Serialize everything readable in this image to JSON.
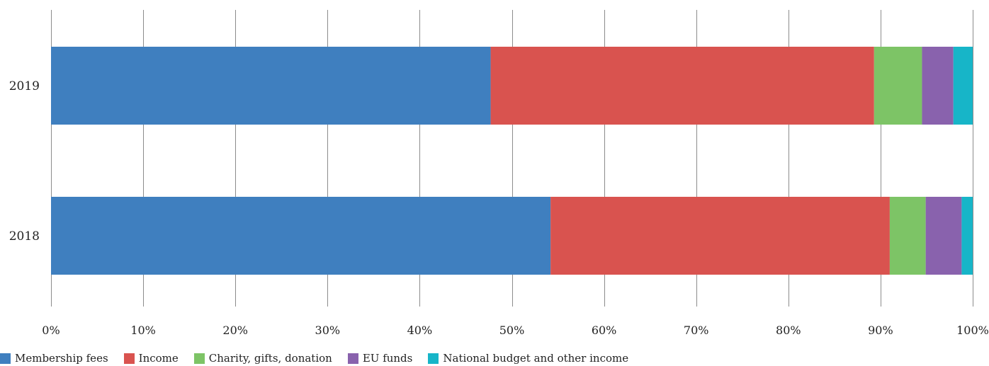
{
  "chart_data": {
    "type": "bar",
    "orientation": "horizontal",
    "stacked": "percent",
    "categories": [
      "2019",
      "2018"
    ],
    "series": [
      {
        "name": "Membership fees",
        "color": "#3f7fbf",
        "values": [
          47.7,
          54.2
        ]
      },
      {
        "name": "Income",
        "color": "#d9534f",
        "values": [
          41.6,
          36.8
        ]
      },
      {
        "name": "Charity, gifts, donation",
        "color": "#7dc466",
        "values": [
          5.2,
          3.9
        ]
      },
      {
        "name": "EU funds",
        "color": "#8962ad",
        "values": [
          3.4,
          3.9
        ]
      },
      {
        "name": "National budget and other income",
        "color": "#17b5c8",
        "values": [
          2.1,
          1.2
        ]
      }
    ],
    "xlim": [
      0,
      100
    ],
    "x_ticks": [
      "0%",
      "10%",
      "20%",
      "30%",
      "40%",
      "50%",
      "60%",
      "70%",
      "80%",
      "90%",
      "100%"
    ],
    "grid": "vertical",
    "legend_position": "bottom-left",
    "title": "",
    "xlabel": "",
    "ylabel": ""
  }
}
